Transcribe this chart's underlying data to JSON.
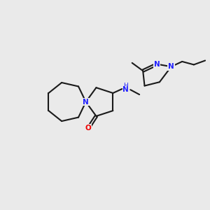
{
  "bg_color": "#eaeaea",
  "bond_color": "#1a1a1a",
  "N_color": "#2020ff",
  "O_color": "#ee0000",
  "lw": 1.5,
  "fig_size": [
    3.0,
    3.0
  ],
  "dpi": 100,
  "xlim": [
    0,
    10
  ],
  "ylim": [
    0,
    10
  ],
  "font_size_atom": 7.5,
  "font_size_h": 6.5
}
